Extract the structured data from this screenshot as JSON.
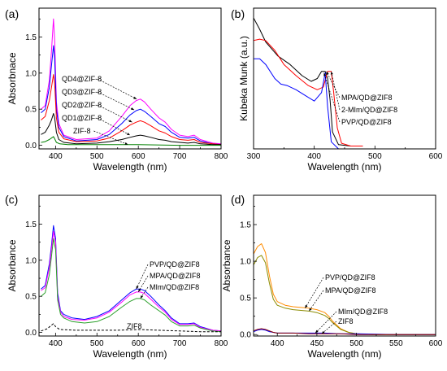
{
  "chart_data": [
    {
      "id": "a",
      "panel_label": "(a)",
      "type": "line",
      "xlabel": "Wavelength (nm)",
      "ylabel": "Absorbnace",
      "xlim": [
        360,
        800
      ],
      "ylim": [
        -0.05,
        1.9
      ],
      "xticks": [
        400,
        500,
        600,
        700,
        800
      ],
      "yticks": [
        0.0,
        0.5,
        1.0,
        1.5
      ],
      "yticks_text": [
        "0.0",
        "0.5",
        "1.0",
        "1.5"
      ],
      "grid": false,
      "legend": "inline-arrows",
      "series": [
        {
          "name": "QD4@ZIF-8",
          "color": "#ff00ff",
          "style": "solid",
          "x": [
            365,
            375,
            385,
            390,
            395,
            398,
            402,
            408,
            420,
            450,
            500,
            530,
            560,
            580,
            595,
            605,
            615,
            630,
            650,
            665,
            680,
            700,
            720,
            735,
            750,
            780,
            800
          ],
          "y": [
            0.5,
            0.55,
            0.9,
            1.3,
            1.75,
            1.45,
            0.6,
            0.3,
            0.14,
            0.08,
            0.1,
            0.2,
            0.4,
            0.55,
            0.62,
            0.64,
            0.6,
            0.5,
            0.38,
            0.32,
            0.22,
            0.14,
            0.12,
            0.14,
            0.08,
            0.03,
            0.02
          ]
        },
        {
          "name": "QD3@ZIF-8",
          "color": "#0000ff",
          "style": "solid",
          "x": [
            365,
            375,
            385,
            390,
            395,
            398,
            402,
            408,
            420,
            450,
            500,
            530,
            560,
            580,
            595,
            605,
            615,
            630,
            650,
            665,
            680,
            700,
            720,
            735,
            750,
            780,
            800
          ],
          "y": [
            0.45,
            0.5,
            0.8,
            1.1,
            1.38,
            1.2,
            0.5,
            0.25,
            0.12,
            0.06,
            0.08,
            0.15,
            0.3,
            0.42,
            0.48,
            0.5,
            0.47,
            0.4,
            0.3,
            0.26,
            0.18,
            0.11,
            0.1,
            0.11,
            0.06,
            0.02,
            0.01
          ]
        },
        {
          "name": "QD2@ZIF-8",
          "color": "#ff0000",
          "style": "solid",
          "x": [
            365,
            375,
            385,
            390,
            395,
            398,
            402,
            408,
            420,
            450,
            500,
            530,
            560,
            580,
            595,
            605,
            615,
            630,
            650,
            665,
            680,
            700,
            720,
            735,
            750,
            780,
            800
          ],
          "y": [
            0.35,
            0.4,
            0.62,
            0.8,
            0.98,
            0.85,
            0.38,
            0.18,
            0.09,
            0.05,
            0.06,
            0.1,
            0.2,
            0.28,
            0.32,
            0.34,
            0.32,
            0.27,
            0.2,
            0.17,
            0.12,
            0.08,
            0.07,
            0.08,
            0.04,
            0.02,
            0.01
          ]
        },
        {
          "name": "QD1@ZIF-8",
          "color": "#000000",
          "style": "solid",
          "x": [
            365,
            375,
            385,
            390,
            395,
            398,
            402,
            408,
            420,
            450,
            500,
            530,
            560,
            580,
            595,
            605,
            615,
            630,
            650,
            665,
            680,
            700,
            720,
            735,
            750,
            780,
            800
          ],
          "y": [
            0.15,
            0.18,
            0.28,
            0.35,
            0.44,
            0.38,
            0.18,
            0.08,
            0.04,
            0.02,
            0.03,
            0.05,
            0.08,
            0.11,
            0.13,
            0.14,
            0.13,
            0.11,
            0.08,
            0.07,
            0.05,
            0.04,
            0.03,
            0.04,
            0.02,
            0.01,
            0.01
          ]
        },
        {
          "name": "ZIF-8",
          "color": "#008000",
          "style": "solid",
          "x": [
            365,
            375,
            385,
            390,
            395,
            398,
            402,
            410,
            430,
            500,
            600,
            700,
            800
          ],
          "y": [
            0.04,
            0.05,
            0.08,
            0.1,
            0.12,
            0.09,
            0.04,
            0.02,
            0.01,
            0.01,
            0.01,
            0.0,
            0.0
          ]
        }
      ]
    },
    {
      "id": "b",
      "panel_label": "(b)",
      "type": "line",
      "xlabel": "Wavelength (nm)",
      "ylabel": "Kubeka Munk (a.u.)",
      "xlim": [
        300,
        600
      ],
      "ylim": [
        0,
        1
      ],
      "xticks": [
        300,
        400,
        500,
        600
      ],
      "yticks": [],
      "grid": false,
      "legend": "inline-arrows",
      "series": [
        {
          "name": "MPA/QD@ZIF8",
          "color": "#000000",
          "style": "solid",
          "x": [
            300,
            310,
            320,
            340,
            360,
            380,
            395,
            405,
            412,
            418,
            422,
            426,
            430,
            440,
            460,
            480
          ],
          "y": [
            0.93,
            0.85,
            0.76,
            0.66,
            0.6,
            0.52,
            0.48,
            0.5,
            0.55,
            0.55,
            0.5,
            0.35,
            0.12,
            0.03,
            0.02,
            0.02
          ]
        },
        {
          "name": "2-MIm/QD@ZIF8",
          "color": "#ff0000",
          "style": "solid",
          "x": [
            300,
            310,
            320,
            335,
            350,
            370,
            390,
            405,
            415,
            422,
            428,
            432,
            438,
            445,
            460,
            480
          ],
          "y": [
            0.77,
            0.78,
            0.77,
            0.7,
            0.6,
            0.52,
            0.45,
            0.42,
            0.44,
            0.55,
            0.55,
            0.4,
            0.15,
            0.04,
            0.02,
            0.02
          ]
        },
        {
          "name": "PVP/QD@ZIF8",
          "color": "#0000ff",
          "style": "solid",
          "x": [
            300,
            310,
            320,
            335,
            345,
            355,
            370,
            385,
            400,
            412,
            418,
            422,
            428,
            440,
            460,
            600
          ],
          "y": [
            0.64,
            0.64,
            0.6,
            0.5,
            0.46,
            0.45,
            0.42,
            0.38,
            0.34,
            0.4,
            0.54,
            0.3,
            0.05,
            0.0,
            0.0,
            0.0
          ]
        }
      ]
    },
    {
      "id": "c",
      "panel_label": "(c)",
      "type": "line",
      "xlabel": "Wavelength (nm)",
      "ylabel": "Absorbance",
      "xlim": [
        360,
        800
      ],
      "ylim": [
        -0.05,
        1.9
      ],
      "xticks": [
        400,
        500,
        600,
        700,
        800
      ],
      "yticks": [
        0.0,
        0.5,
        1.0,
        1.5
      ],
      "yticks_text": [
        "0.0",
        "0.5",
        "1.0",
        "1.5"
      ],
      "grid": false,
      "legend": "inline-arrows",
      "series": [
        {
          "name": "PVP/QD@ZIF8",
          "color": "#0000ff",
          "style": "solid",
          "x": [
            365,
            375,
            385,
            390,
            395,
            400,
            405,
            412,
            420,
            440,
            470,
            500,
            530,
            560,
            580,
            595,
            605,
            615,
            630,
            650,
            665,
            680,
            700,
            720,
            735,
            750,
            780,
            800
          ],
          "y": [
            0.6,
            0.65,
            0.95,
            1.2,
            1.48,
            1.3,
            0.55,
            0.3,
            0.25,
            0.2,
            0.18,
            0.22,
            0.3,
            0.45,
            0.55,
            0.6,
            0.6,
            0.58,
            0.5,
            0.38,
            0.3,
            0.2,
            0.12,
            0.12,
            0.13,
            0.08,
            0.03,
            0.02
          ]
        },
        {
          "name": "MPA/QD@ZIF8",
          "color": "#ff00ff",
          "style": "solid",
          "x": [
            365,
            375,
            385,
            390,
            395,
            400,
            405,
            412,
            420,
            440,
            470,
            500,
            530,
            560,
            580,
            595,
            605,
            615,
            630,
            650,
            665,
            680,
            700,
            720,
            735,
            750,
            780,
            800
          ],
          "y": [
            0.58,
            0.62,
            0.9,
            1.15,
            1.4,
            1.25,
            0.5,
            0.28,
            0.22,
            0.18,
            0.17,
            0.2,
            0.28,
            0.42,
            0.52,
            0.56,
            0.56,
            0.54,
            0.46,
            0.35,
            0.28,
            0.18,
            0.11,
            0.11,
            0.12,
            0.07,
            0.03,
            0.02
          ]
        },
        {
          "name": "MIm/QD@ZIF8",
          "color": "#2ca02c",
          "style": "solid",
          "x": [
            365,
            375,
            385,
            390,
            395,
            400,
            405,
            412,
            420,
            440,
            470,
            500,
            530,
            560,
            580,
            595,
            605,
            615,
            630,
            650,
            665,
            680,
            700,
            720,
            735,
            750,
            780,
            800
          ],
          "y": [
            0.5,
            0.55,
            0.8,
            1.05,
            1.3,
            1.15,
            0.45,
            0.25,
            0.2,
            0.15,
            0.13,
            0.15,
            0.22,
            0.35,
            0.43,
            0.47,
            0.47,
            0.45,
            0.38,
            0.3,
            0.24,
            0.15,
            0.09,
            0.09,
            0.1,
            0.06,
            0.02,
            0.01
          ]
        },
        {
          "name": "ZIF8",
          "color": "#000000",
          "style": "dashed",
          "x": [
            365,
            380,
            390,
            395,
            400,
            410,
            450,
            500,
            550,
            600,
            650,
            700,
            750,
            800
          ],
          "y": [
            0.02,
            0.05,
            0.1,
            0.12,
            0.08,
            0.04,
            0.03,
            0.03,
            0.03,
            0.04,
            0.03,
            0.02,
            0.01,
            0.01
          ]
        }
      ]
    },
    {
      "id": "d",
      "panel_label": "(d)",
      "type": "line",
      "xlabel": "Wavelength (nm)",
      "ylabel": "Absorbance",
      "xlim": [
        370,
        600
      ],
      "ylim": [
        -0.02,
        1.9
      ],
      "xticks": [
        400,
        450,
        500,
        550,
        600
      ],
      "yticks": [
        0.0,
        0.5,
        1.0,
        1.5
      ],
      "yticks_text": [
        "0.0",
        "0.5",
        "1.0",
        "1.5"
      ],
      "grid": false,
      "legend": "inline-arrows",
      "series": [
        {
          "name": "PVP/QD@ZIF8",
          "color": "#ff8c00",
          "style": "solid",
          "x": [
            370,
            375,
            380,
            385,
            390,
            395,
            400,
            410,
            420,
            430,
            440,
            450,
            460,
            465,
            470,
            480,
            490,
            500,
            520,
            550,
            600
          ],
          "y": [
            1.1,
            1.2,
            1.24,
            1.12,
            0.8,
            0.55,
            0.45,
            0.4,
            0.38,
            0.37,
            0.36,
            0.34,
            0.3,
            0.25,
            0.18,
            0.08,
            0.03,
            0.01,
            0.0,
            0.0,
            0.0
          ]
        },
        {
          "name": "MPA/QD@ZIF8",
          "color": "#8b8b00",
          "style": "solid",
          "x": [
            370,
            375,
            380,
            385,
            390,
            395,
            400,
            410,
            420,
            430,
            440,
            450,
            460,
            465,
            470,
            480,
            490,
            500,
            520,
            550,
            600
          ],
          "y": [
            0.95,
            1.05,
            1.08,
            0.98,
            0.7,
            0.48,
            0.4,
            0.36,
            0.34,
            0.33,
            0.32,
            0.3,
            0.26,
            0.22,
            0.16,
            0.07,
            0.03,
            0.01,
            0.0,
            0.0,
            0.0
          ]
        },
        {
          "name": "MIm/QD@ZIF8",
          "color": "#0000ff",
          "style": "solid",
          "x": [
            370,
            375,
            380,
            385,
            390,
            395,
            400,
            410,
            420,
            440,
            460,
            480,
            500,
            550,
            600
          ],
          "y": [
            0.04,
            0.06,
            0.07,
            0.06,
            0.04,
            0.03,
            0.02,
            0.02,
            0.02,
            0.02,
            0.02,
            0.01,
            0.01,
            0.0,
            0.0
          ]
        },
        {
          "name": "ZIF8",
          "color": "#8b0000",
          "style": "solid",
          "x": [
            370,
            375,
            380,
            385,
            390,
            395,
            400,
            410,
            420,
            440,
            460,
            480,
            500,
            550,
            600
          ],
          "y": [
            0.05,
            0.07,
            0.08,
            0.07,
            0.05,
            0.03,
            0.02,
            0.02,
            0.02,
            0.01,
            0.01,
            0.01,
            0.0,
            0.0,
            0.0
          ]
        }
      ]
    }
  ]
}
